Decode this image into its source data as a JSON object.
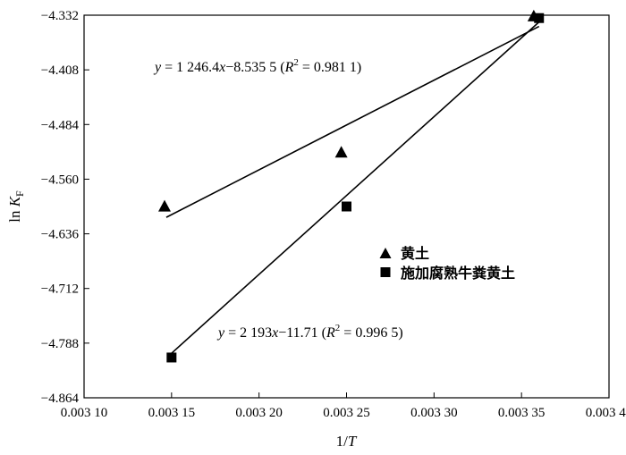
{
  "chart_data": {
    "type": "scatter",
    "xlabel": "1/T",
    "ylabel": "ln KF",
    "xlim": [
      0.0031,
      0.0034
    ],
    "ylim": [
      -4.864,
      -4.332
    ],
    "x_ticks": [
      0.0031,
      0.00315,
      0.0032,
      0.00325,
      0.0033,
      0.00335,
      0.0034
    ],
    "x_tick_labels": [
      "0.003 10",
      "0.003 15",
      "0.003 20",
      "0.003 25",
      "0.003 30",
      "0.003 35",
      "0.003 40"
    ],
    "y_ticks": [
      -4.332,
      -4.408,
      -4.484,
      -4.56,
      -4.636,
      -4.712,
      -4.788,
      -4.864
    ],
    "y_tick_labels": [
      "−4.332",
      "−4.408",
      "−4.484",
      "−4.560",
      "−4.636",
      "−4.712",
      "−4.788",
      "−4.864"
    ],
    "grid": false,
    "legend_position": "center-right",
    "series": [
      {
        "name": "黄土",
        "marker": "triangle",
        "color": "#000000",
        "points": [
          {
            "x": 0.003146,
            "y": -4.5975
          },
          {
            "x": 0.003247,
            "y": -4.5225
          },
          {
            "x": 0.003357,
            "y": -4.3331
          }
        ],
        "fit": {
          "slope": 1246.4,
          "intercept": -8.5355,
          "x_range": [
            0.003147,
            0.00336
          ]
        },
        "equation": {
          "y": "y",
          "eq": " = 1 246.4",
          "x": "x",
          "rest": "−8.535 5  (",
          "R": "R",
          "sup": "2",
          "r2": " = 0.981 1)"
        }
      },
      {
        "name": "施加腐熟牛粪黄土",
        "marker": "square",
        "color": "#000000",
        "points": [
          {
            "x": 0.00315,
            "y": -4.808
          },
          {
            "x": 0.00325,
            "y": -4.598
          },
          {
            "x": 0.00336,
            "y": -4.336
          }
        ],
        "fit": {
          "slope": 2193,
          "intercept": -11.71,
          "x_range": [
            0.00315,
            0.003361
          ]
        },
        "equation": {
          "y": "y",
          "eq": " = 2 193",
          "x": "x",
          "rest": "−11.71  (",
          "R": "R",
          "sup": "2",
          "r2": " = 0.996 5)"
        }
      }
    ]
  }
}
